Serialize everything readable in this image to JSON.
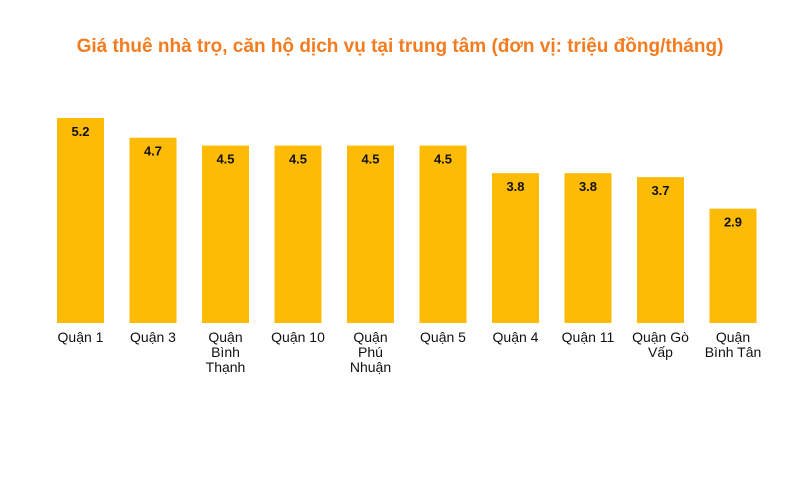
{
  "colors": {
    "title": "#f47c20",
    "bar": "#fdbb06"
  },
  "chart_data": {
    "type": "bar",
    "title": "Giá thuê nhà trọ, căn hộ dịch vụ tại trung tâm (đơn vị: triệu đồng/tháng)",
    "xlabel": "",
    "ylabel": "",
    "grid": false,
    "categories": [
      "Quận 1",
      "Quận 3",
      "Quận Bình Thạnh",
      "Quận 10",
      "Quận Phú Nhuận",
      "Quận 5",
      "Quận 4",
      "Quận 11",
      "Quận Gò Vấp",
      "Quận Bình Tân"
    ],
    "category_lines": [
      [
        "Quận 1"
      ],
      [
        "Quận 3"
      ],
      [
        "Quận",
        "Bình",
        "Thạnh"
      ],
      [
        "Quận 10"
      ],
      [
        "Quận",
        "Phú",
        "Nhuận"
      ],
      [
        "Quận 5"
      ],
      [
        "Quận 4"
      ],
      [
        "Quận 11"
      ],
      [
        "Quận Gò",
        "Vấp"
      ],
      [
        "Quận",
        "Bình Tân"
      ]
    ],
    "values": [
      5.2,
      4.7,
      4.5,
      4.5,
      4.5,
      4.5,
      3.8,
      3.8,
      3.7,
      2.9
    ],
    "value_labels": [
      "5.2",
      "4.7",
      "4.5",
      "4.5",
      "4.5",
      "4.5",
      "3.8",
      "3.8",
      "3.7",
      "2.9"
    ],
    "ylim": [
      0,
      5.2
    ]
  }
}
